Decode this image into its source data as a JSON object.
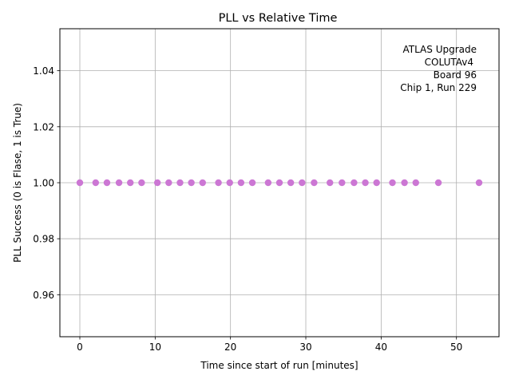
{
  "chart_data": {
    "type": "scatter",
    "title": "PLL vs Relative Time",
    "xlabel": "Time since start of run [minutes]",
    "ylabel": "PLL Success (0 is Flase, 1 is True)",
    "xlim": [
      -2.65,
      55.65
    ],
    "ylim": [
      0.945,
      1.055
    ],
    "xticks": [
      0,
      10,
      20,
      30,
      40,
      50
    ],
    "xtick_labels": [
      "0",
      "10",
      "20",
      "30",
      "40",
      "50"
    ],
    "yticks": [
      0.96,
      0.98,
      1.0,
      1.02,
      1.04
    ],
    "ytick_labels": [
      "0.96",
      "0.98",
      "1.00",
      "1.02",
      "1.04"
    ],
    "grid": true,
    "marker_color": "#cc77d4",
    "annotation": [
      "ATLAS Upgrade",
      "COLUTAv4",
      "Board 96",
      "Chip 1, Run 229"
    ],
    "series": [
      {
        "x": [
          0,
          2.1,
          3.6,
          5.2,
          6.7,
          8.2,
          10.3,
          11.8,
          13.3,
          14.8,
          16.3,
          18.4,
          19.9,
          21.4,
          22.9,
          25.0,
          26.5,
          28.0,
          29.5,
          31.1,
          33.2,
          34.8,
          36.4,
          37.9,
          39.4,
          41.5,
          43.1,
          44.6,
          47.6,
          53.0
        ],
        "y": [
          1,
          1,
          1,
          1,
          1,
          1,
          1,
          1,
          1,
          1,
          1,
          1,
          1,
          1,
          1,
          1,
          1,
          1,
          1,
          1,
          1,
          1,
          1,
          1,
          1,
          1,
          1,
          1,
          1,
          1
        ]
      }
    ]
  }
}
